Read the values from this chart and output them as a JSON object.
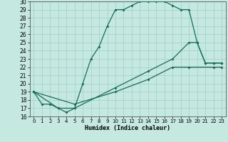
{
  "xlabel": "Humidex (Indice chaleur)",
  "bg_color": "#c5e8e0",
  "line_color": "#1a6b5a",
  "grid_color": "#9ecfc5",
  "xlim": [
    -0.5,
    23.5
  ],
  "ylim": [
    16,
    30
  ],
  "xticks": [
    0,
    1,
    2,
    3,
    4,
    5,
    6,
    7,
    8,
    9,
    10,
    11,
    12,
    13,
    14,
    15,
    16,
    17,
    18,
    19,
    20,
    21,
    22,
    23
  ],
  "yticks": [
    16,
    17,
    18,
    19,
    20,
    21,
    22,
    23,
    24,
    25,
    26,
    27,
    28,
    29,
    30
  ],
  "line1_x": [
    0,
    1,
    2,
    3,
    4,
    5,
    6,
    7,
    8,
    9,
    10,
    11,
    12,
    13,
    14,
    15,
    16,
    17,
    18,
    19,
    20,
    21,
    22,
    23
  ],
  "line1_y": [
    19,
    17.5,
    17.5,
    17,
    16.5,
    17,
    20,
    23,
    24.5,
    27,
    29,
    29,
    29.5,
    30,
    30,
    30,
    30,
    29.5,
    29,
    29,
    25,
    22.5,
    22.5,
    22.5
  ],
  "line2_x": [
    0,
    3,
    5,
    10,
    14,
    17,
    19,
    20,
    21,
    22,
    23
  ],
  "line2_y": [
    19,
    17,
    17,
    19.5,
    21.5,
    23,
    25,
    25,
    22.5,
    22.5,
    22.5
  ],
  "line3_x": [
    0,
    5,
    10,
    14,
    17,
    19,
    22,
    23
  ],
  "line3_y": [
    19,
    17.5,
    19,
    20.5,
    22,
    22,
    22,
    22
  ]
}
